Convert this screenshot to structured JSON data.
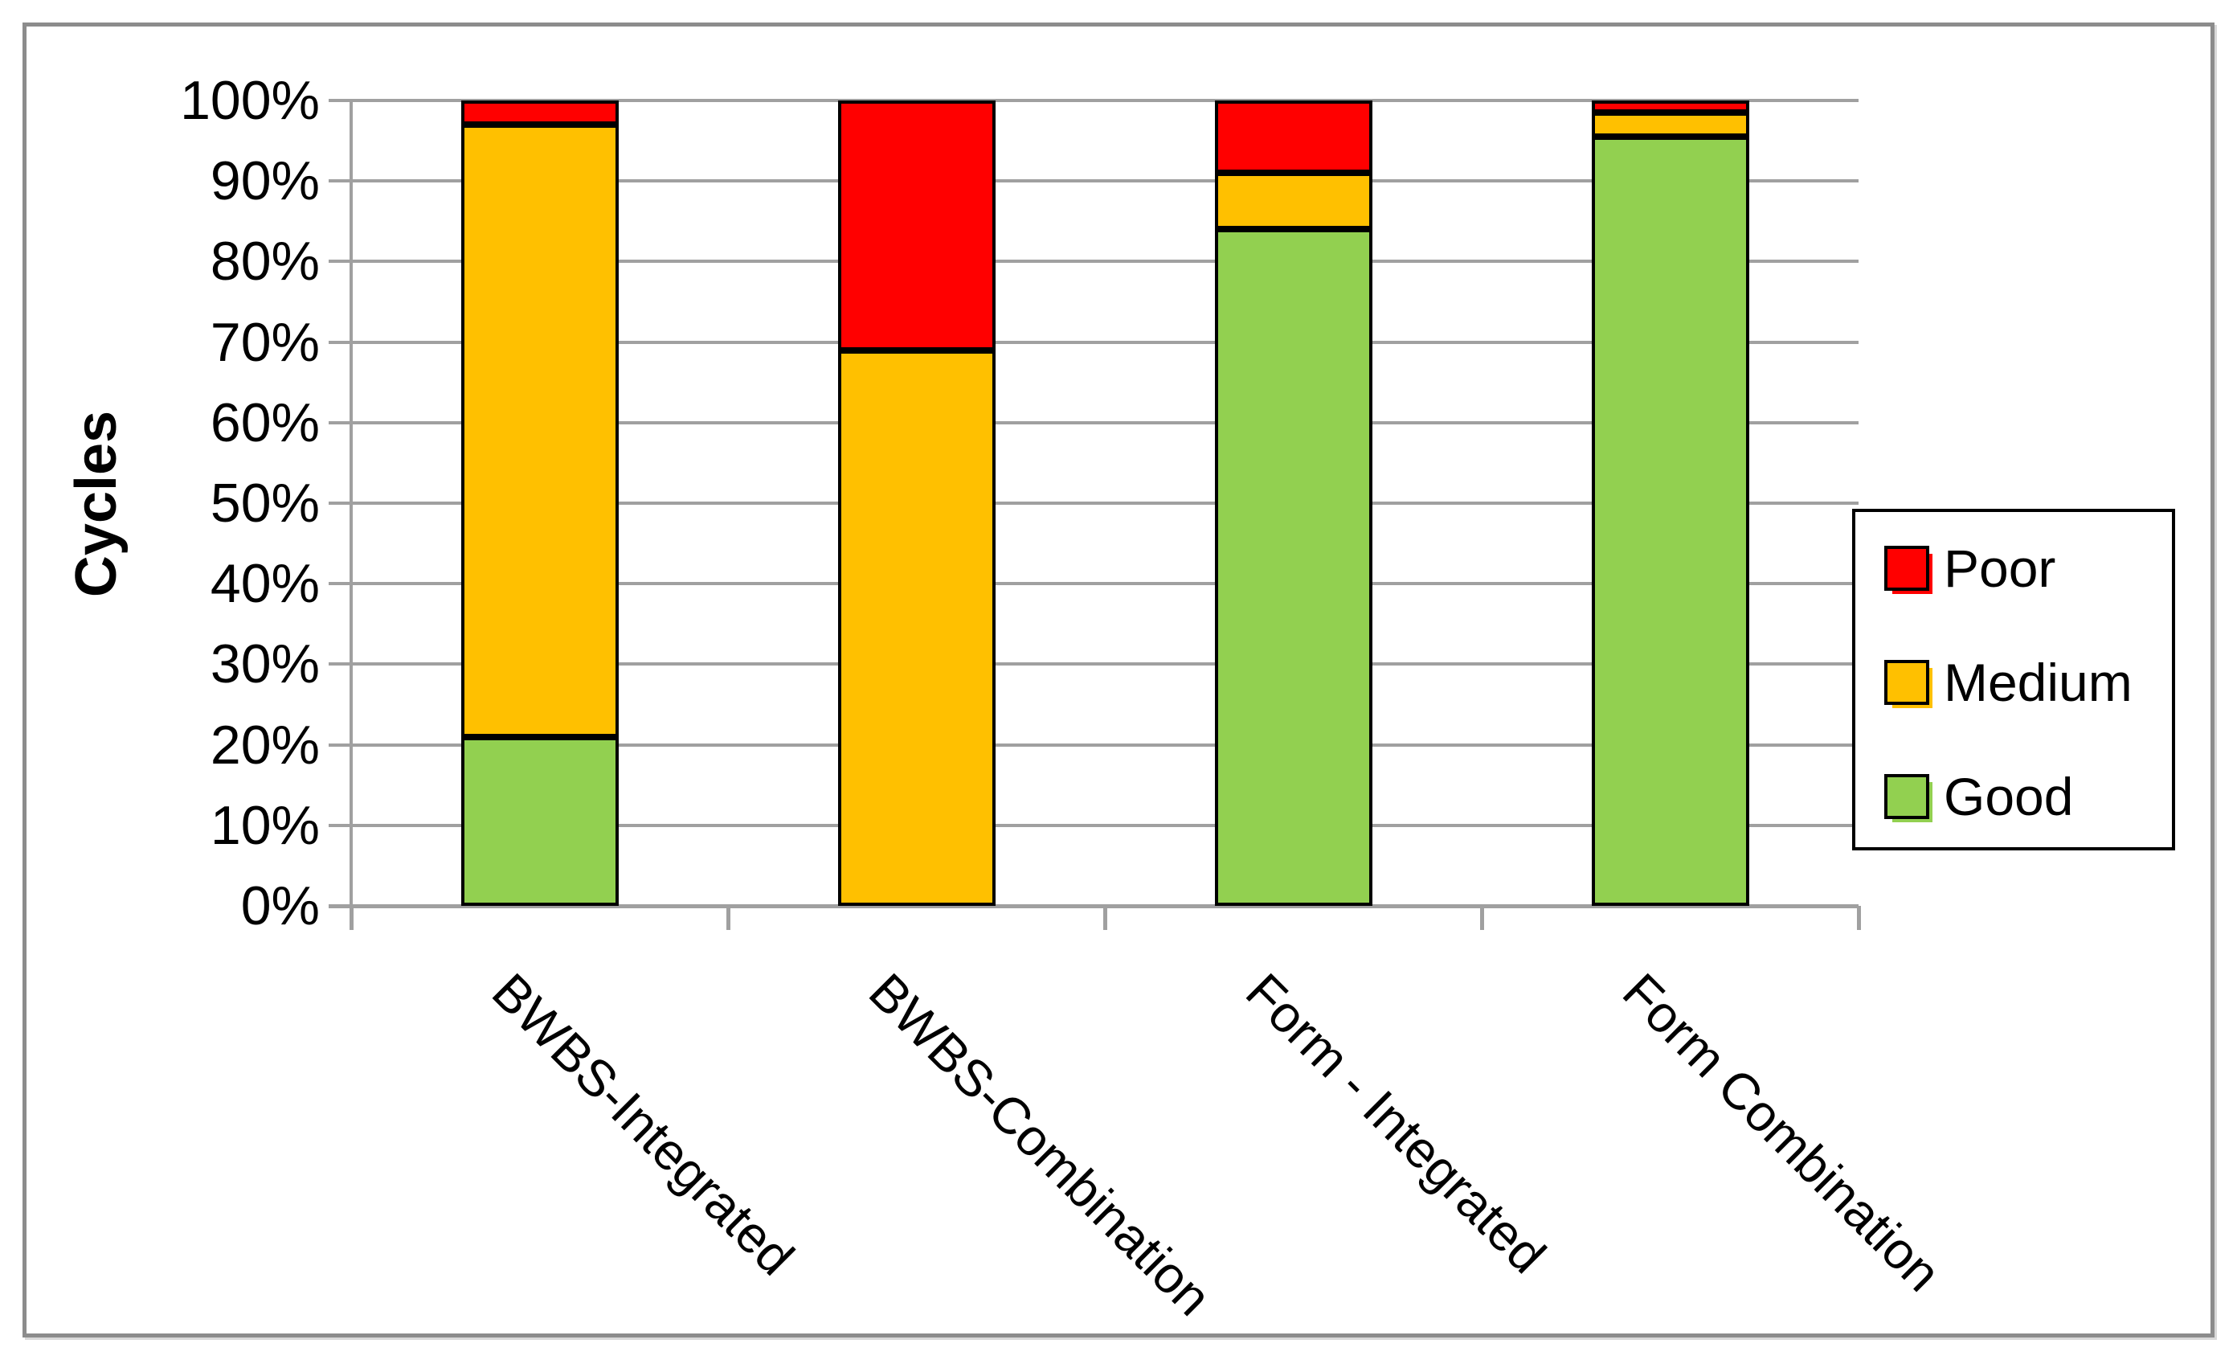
{
  "chart_data": {
    "type": "bar",
    "subtype": "stacked-100-percent",
    "title": "",
    "xlabel": "",
    "ylabel": "Cycles",
    "ylim": [
      0,
      100
    ],
    "grid": "horizontal",
    "y_ticks": [
      "0%",
      "10%",
      "20%",
      "30%",
      "40%",
      "50%",
      "60%",
      "70%",
      "80%",
      "90%",
      "100%"
    ],
    "categories": [
      "BWBS-Integrated",
      "BWBS-Combination",
      "Form - Integrated",
      "Form Combination"
    ],
    "series": [
      {
        "name": "Good",
        "color": "#92D050",
        "values": [
          21,
          0,
          84,
          95.5
        ]
      },
      {
        "name": "Medium",
        "color": "#FFC000",
        "values": [
          76,
          69,
          7,
          3
        ]
      },
      {
        "name": "Poor",
        "color": "#FF0000",
        "values": [
          3,
          31,
          9,
          1.5
        ]
      }
    ],
    "legend_position": "right"
  },
  "legend": {
    "items": [
      {
        "label": "Poor",
        "color": "#FF0000"
      },
      {
        "label": "Medium",
        "color": "#FFC000"
      },
      {
        "label": "Good",
        "color": "#92D050"
      }
    ]
  },
  "colors": {
    "bar_outline": "#000000",
    "gridline": "#A0A0A0",
    "axis": "#A0A0A0",
    "frame_border": "#8C8C8C",
    "background": "#FFFFFF"
  }
}
